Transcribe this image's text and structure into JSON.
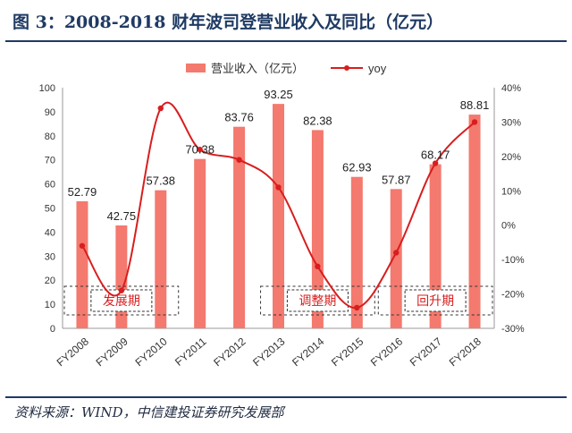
{
  "figure_title": "图 3：2008-2018 财年波司登营业收入及同比（亿元）",
  "source": "资料来源：WIND，中信建投证券研究发展部",
  "colors": {
    "bar": "#f4796e",
    "line": "#d81e1e",
    "title": "#1f3a63",
    "period_box": "#333333"
  },
  "chart_data": {
    "type": "bar",
    "categories": [
      "FY2008",
      "FY2009",
      "FY2010",
      "FY2011",
      "FY2012",
      "FY2013",
      "FY2014",
      "FY2015",
      "FY2016",
      "FY2017",
      "FY2018"
    ],
    "series": [
      {
        "name": "营业收入（亿元）",
        "type": "bar",
        "axis": "left",
        "values": [
          52.79,
          42.75,
          57.38,
          70.38,
          83.76,
          93.25,
          82.38,
          62.93,
          57.87,
          68.17,
          88.81
        ],
        "value_labels": [
          "52.79",
          "42.75",
          "57.38",
          "70.38",
          "83.76",
          "93.25",
          "82.38",
          "62.93",
          "57.87",
          "68.17",
          "88.81"
        ]
      },
      {
        "name": "yoy",
        "type": "line",
        "axis": "right",
        "smooth": true,
        "values": [
          -6,
          -19,
          34,
          22,
          19,
          11,
          -12,
          -24,
          -8,
          18,
          30
        ]
      }
    ],
    "y_left": {
      "min": 0,
      "max": 100,
      "step": 10,
      "tick_labels": [
        "0",
        "10",
        "20",
        "30",
        "40",
        "50",
        "60",
        "70",
        "80",
        "90",
        "100"
      ]
    },
    "y_right": {
      "min": -30,
      "max": 40,
      "step": 10,
      "tick_labels": [
        "-30%",
        "-20%",
        "-10%",
        "0%",
        "10%",
        "20%",
        "30%",
        "40%"
      ]
    },
    "grid": false,
    "legend_position": "top",
    "periods": [
      {
        "label": "发展期",
        "from": "FY2008",
        "to": "FY2010"
      },
      {
        "label": "调整期",
        "from": "FY2013",
        "to": "FY2015"
      },
      {
        "label": "回升期",
        "from": "FY2016",
        "to": "FY2018"
      }
    ]
  }
}
